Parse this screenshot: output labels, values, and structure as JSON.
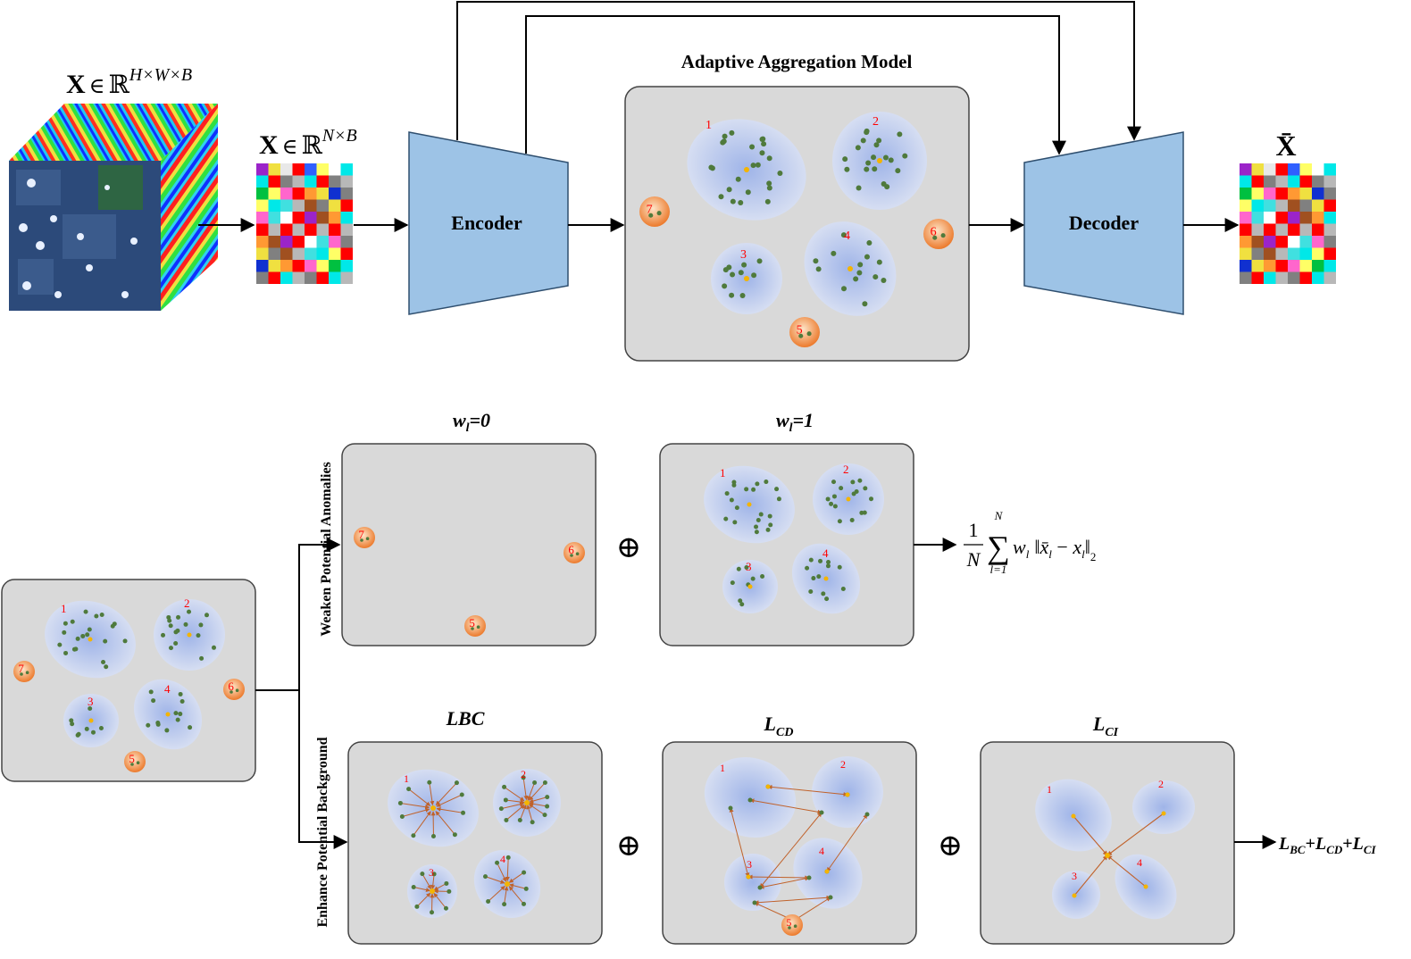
{
  "labels": {
    "cube_label_base": "X",
    "cube_label_in": "∈",
    "cube_label_R": "ℝ",
    "cube_label_sup": "H×W×B",
    "matrix_label_base": "X",
    "matrix_label_in": "∈",
    "matrix_label_R": "ℝ",
    "matrix_label_sup": "N×B",
    "aam_title": "Adaptive Aggregation Model",
    "encoder": "Encoder",
    "decoder": "Decoder",
    "output_label": "X̄",
    "w0_base": "w",
    "w0_sub": "l",
    "w0_tail": "=0",
    "w1_base": "w",
    "w1_sub": "l",
    "w1_tail": "=1",
    "weaken_label": "Weaken  Potential Anomalies",
    "enhance_label": "Enhance Potential Background",
    "lbc_title": "LBC",
    "lcd_base": "L",
    "lcd_sub": "CD",
    "lci_base": "L",
    "lci_sub": "CI",
    "oplus": "⊕",
    "formula_num": "1",
    "formula_den": "N",
    "formula_sum": "∑",
    "formula_sum_top": "N",
    "formula_sum_bot": "l=1",
    "formula_body_w": "w",
    "formula_body_wsub": "l",
    "formula_body_norm_open": "‖",
    "formula_body_xbar": "x̄",
    "formula_body_xbar_sub": "l",
    "formula_body_minus": " − ",
    "formula_body_x": "x",
    "formula_body_x_sub": "l",
    "formula_body_norm_close": "‖",
    "formula_body_norm_sub": "2",
    "loss_L1": "L",
    "loss_L1_sub": "BC",
    "loss_plus1": "+",
    "loss_L2": "L",
    "loss_L2_sub": "CD",
    "loss_plus2": "+",
    "loss_L3": "L",
    "loss_L3_sub": "CI"
  },
  "cluster_numbers": [
    "1",
    "2",
    "3",
    "4",
    "5",
    "6",
    "7"
  ],
  "colors": {
    "panel_fill": "#d9d9d9",
    "panel_stroke": "#444444",
    "cluster_fill": "#c5d3ef",
    "dot_green": "#4f7a3c",
    "dot_orange": "#f4b400",
    "anomaly_orange": "#f08a3c",
    "number_red": "#ff0000",
    "coder_fill": "#9dc3e6",
    "arrow_brown": "#c0622b"
  },
  "matrix_colors": [
    "#9b24c9",
    "#b8b8b8",
    "#ffffff",
    "#f0e040",
    "#ff66cc",
    "#00e8e8",
    "#e8e8e8",
    "#a05020",
    "#1030d0",
    "#ff0000",
    "#00c040",
    "#40e0e0",
    "#3060ff",
    "#808080",
    "#ff9933",
    "#ffff66"
  ]
}
